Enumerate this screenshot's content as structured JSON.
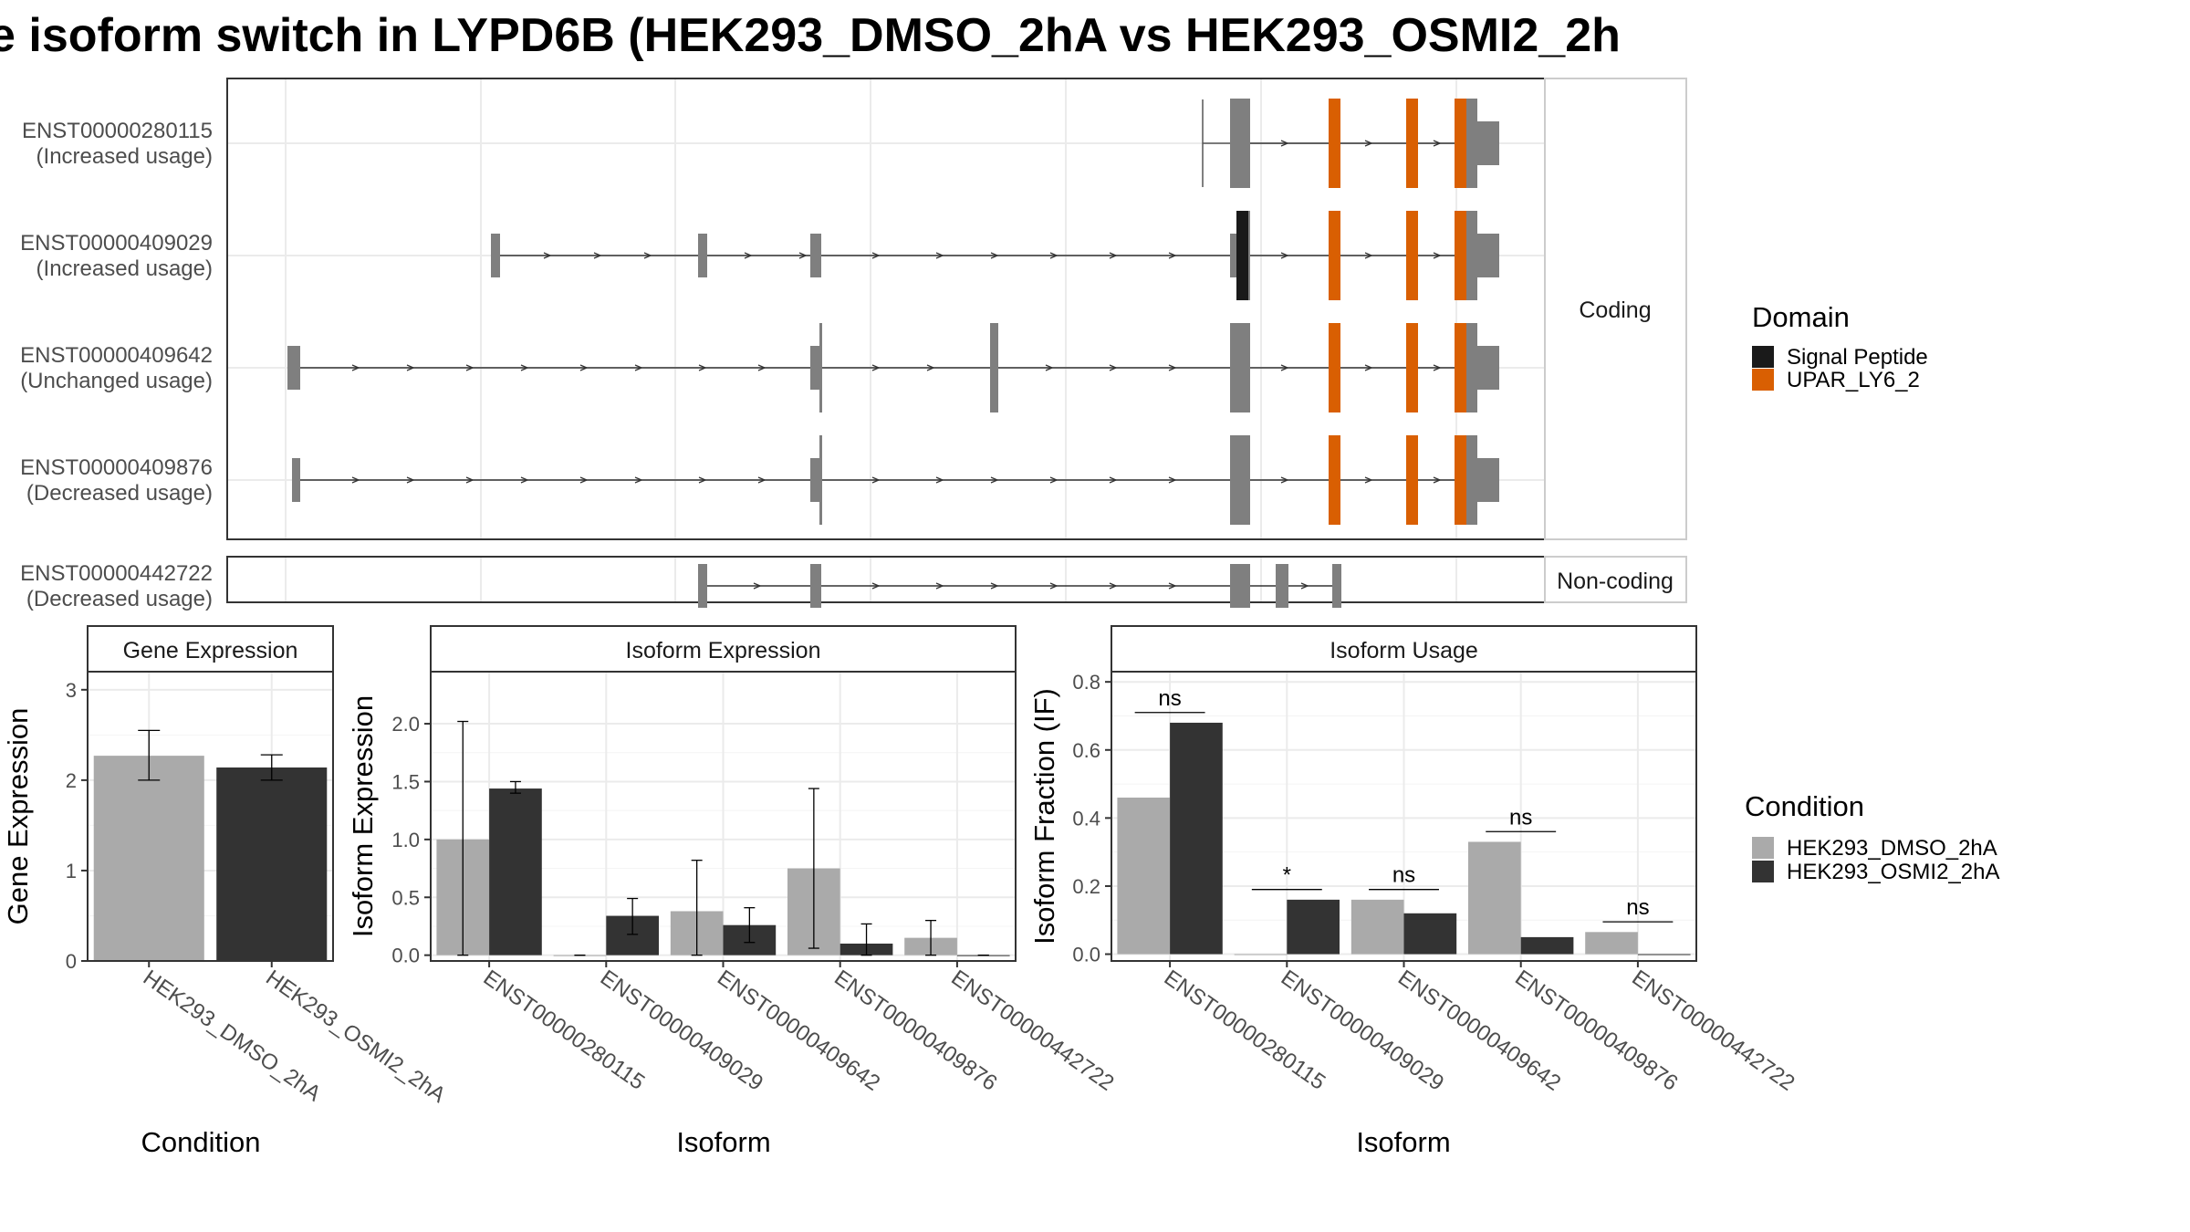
{
  "title": "e isoform switch in LYPD6B (HEK293_DMSO_2hA vs HEK293_OSMI2_2h",
  "colors": {
    "exon": "#7f7f7f",
    "domain_signal_peptide": "#1a1a1a",
    "domain_upar": "#d95f02",
    "dmso": "#aaaaaa",
    "osmi": "#333333",
    "grid": "#ebebeb"
  },
  "structure": {
    "facets": [
      "Coding",
      "Non-coding"
    ],
    "transcripts": [
      {
        "id": "ENST00000280115",
        "usage": "(Increased usage)",
        "group": "Coding"
      },
      {
        "id": "ENST00000409029",
        "usage": "(Increased usage)",
        "group": "Coding"
      },
      {
        "id": "ENST00000409642",
        "usage": "(Unchanged usage)",
        "group": "Coding"
      },
      {
        "id": "ENST00000409876",
        "usage": "(Decreased usage)",
        "group": "Coding"
      },
      {
        "id": "ENST00000442722",
        "usage": "(Decreased usage)",
        "group": "Non-coding"
      }
    ]
  },
  "legend_domain": {
    "title": "Domain",
    "items": [
      {
        "label": "Signal Peptide",
        "color": "#1a1a1a"
      },
      {
        "label": "UPAR_LY6_2",
        "color": "#d95f02"
      }
    ]
  },
  "legend_condition": {
    "title": "Condition",
    "items": [
      {
        "label": "HEK293_DMSO_2hA",
        "color": "#aaaaaa"
      },
      {
        "label": "HEK293_OSMI2_2hA",
        "color": "#333333"
      }
    ]
  },
  "chart_data": [
    {
      "type": "bar",
      "title": "Gene Expression",
      "xlabel": "Condition",
      "ylabel": "Gene Expression",
      "ylim": [
        0,
        3.2
      ],
      "yticks": [
        "0",
        "1",
        "2",
        "3"
      ],
      "categories": [
        "HEK293_DMSO_2hA",
        "HEK293_OSMI2_2hA"
      ],
      "values": [
        2.27,
        2.14
      ],
      "errors": [
        [
          2.0,
          2.55
        ],
        [
          2.0,
          2.28
        ]
      ]
    },
    {
      "type": "bar",
      "title": "Isoform Expression",
      "xlabel": "Isoform",
      "ylabel": "Isoform Expression",
      "ylim": [
        -0.05,
        2.45
      ],
      "yticks": [
        "0.0",
        "0.5",
        "1.0",
        "1.5",
        "2.0"
      ],
      "categories": [
        "ENST00000280115",
        "ENST00000409029",
        "ENST00000409642",
        "ENST00000409876",
        "ENST00000442722"
      ],
      "series": [
        {
          "name": "HEK293_DMSO_2hA",
          "values": [
            1.0,
            0.0,
            0.38,
            0.75,
            0.15
          ],
          "errors": [
            [
              0.0,
              2.02
            ],
            [
              0.0,
              0.0
            ],
            [
              0.0,
              0.82
            ],
            [
              0.06,
              1.44
            ],
            [
              0.0,
              0.3
            ]
          ]
        },
        {
          "name": "HEK293_OSMI2_2hA",
          "values": [
            1.44,
            0.34,
            0.26,
            0.1,
            0.0
          ],
          "errors": [
            [
              1.4,
              1.5
            ],
            [
              0.18,
              0.49
            ],
            [
              0.11,
              0.41
            ],
            [
              0.0,
              0.27
            ],
            [
              0.0,
              0.0
            ]
          ]
        }
      ]
    },
    {
      "type": "bar",
      "title": "Isoform Usage",
      "xlabel": "Isoform",
      "ylabel": "Isoform Fraction (IF)",
      "ylim": [
        -0.02,
        0.83
      ],
      "yticks": [
        "0.0",
        "0.2",
        "0.4",
        "0.6",
        "0.8"
      ],
      "categories": [
        "ENST00000280115",
        "ENST00000409029",
        "ENST00000409642",
        "ENST00000409876",
        "ENST00000442722"
      ],
      "series": [
        {
          "name": "HEK293_DMSO_2hA",
          "values": [
            0.46,
            0.0,
            0.16,
            0.33,
            0.065
          ]
        },
        {
          "name": "HEK293_OSMI2_2hA",
          "values": [
            0.68,
            0.16,
            0.12,
            0.05,
            0.0
          ]
        }
      ],
      "annotations": [
        {
          "category": "ENST00000280115",
          "label": "ns",
          "y": 0.71
        },
        {
          "category": "ENST00000409029",
          "label": "*",
          "y": 0.19
        },
        {
          "category": "ENST00000409642",
          "label": "ns",
          "y": 0.19
        },
        {
          "category": "ENST00000409876",
          "label": "ns",
          "y": 0.36
        },
        {
          "category": "ENST00000442722",
          "label": "ns",
          "y": 0.095
        }
      ]
    }
  ]
}
